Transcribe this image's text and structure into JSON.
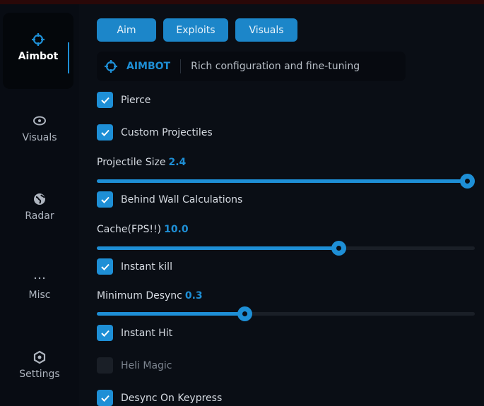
{
  "sidebar": {
    "items": [
      {
        "label": "Aimbot",
        "icon": "crosshair-icon",
        "active": true
      },
      {
        "label": "Visuals",
        "icon": "eye-icon"
      },
      {
        "label": "Radar",
        "icon": "globe-icon"
      },
      {
        "label": "Misc",
        "icon": "ellipsis-icon"
      },
      {
        "label": "Settings",
        "icon": "gear-icon"
      }
    ]
  },
  "tabs": [
    "Aim",
    "Exploits",
    "Visuals"
  ],
  "header": {
    "title": "AIMBOT",
    "subtitle": "Rich configuration and fine-tuning",
    "icon": "crosshair-icon"
  },
  "options": {
    "pierce": {
      "label": "Pierce",
      "checked": true
    },
    "custom_projectiles": {
      "label": "Custom Projectiles",
      "checked": true
    },
    "projectile_size": {
      "label": "Projectile Size",
      "value": "2.4",
      "fill_percent": 98
    },
    "behind_wall": {
      "label": "Behind Wall Calculations",
      "checked": true
    },
    "cache": {
      "label": "Cache(FPS!!)",
      "value": "10.0",
      "fill_percent": 64
    },
    "instant_kill": {
      "label": "Instant kill",
      "checked": true
    },
    "min_desync": {
      "label": "Minimum Desync",
      "value": "0.3",
      "fill_percent": 39
    },
    "instant_hit": {
      "label": "Instant Hit",
      "checked": true
    },
    "heli_magic": {
      "label": "Heli Magic",
      "checked": false
    },
    "desync_keypress": {
      "label": "Desync On Keypress",
      "checked": true
    }
  },
  "colors": {
    "accent": "#1e8fd6",
    "background": "#0a0e15"
  }
}
